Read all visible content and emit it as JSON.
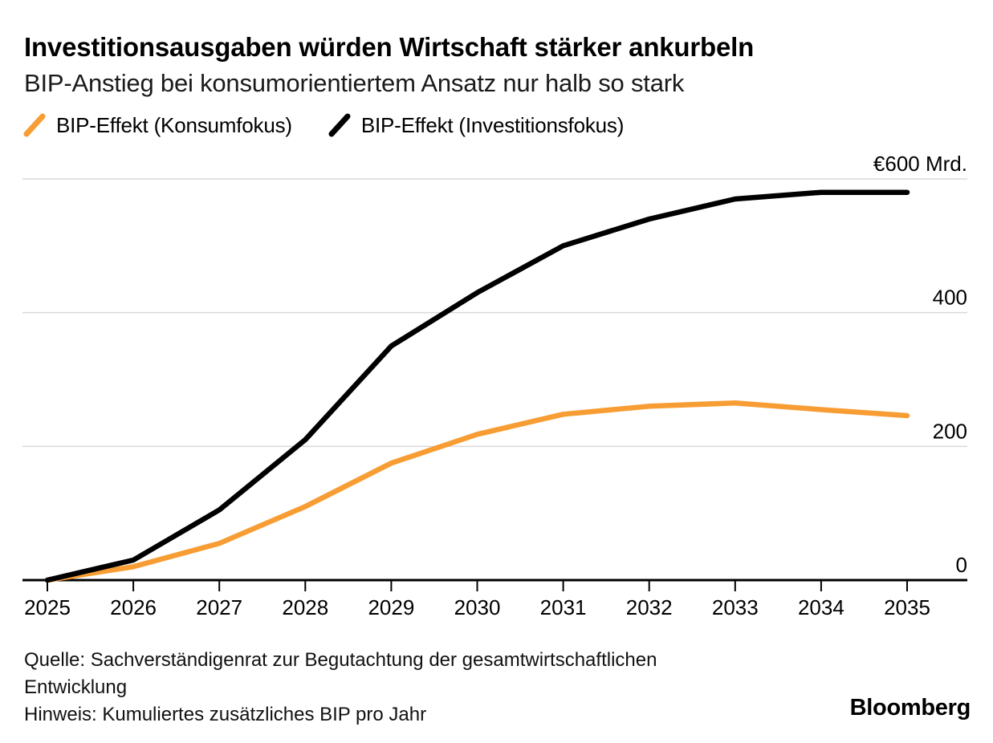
{
  "header": {
    "title": "Investitionsausgaben würden Wirtschaft stärker ankurbeln",
    "subtitle": "BIP-Anstieg bei konsumorientiertem Ansatz nur halb so stark"
  },
  "legend": [
    {
      "label": "BIP-Effekt (Konsumfokus)",
      "color": "#F79D33"
    },
    {
      "label": "BIP-Effekt (Investitionsfokus)",
      "color": "#000000"
    }
  ],
  "chart_data": {
    "type": "line",
    "categories": [
      "2025",
      "2026",
      "2027",
      "2028",
      "2029",
      "2030",
      "2031",
      "2032",
      "2033",
      "2034",
      "2035"
    ],
    "series": [
      {
        "name": "BIP-Effekt (Konsumfokus)",
        "color": "#F79D33",
        "values": [
          0,
          20,
          55,
          110,
          175,
          218,
          248,
          260,
          265,
          255,
          246
        ]
      },
      {
        "name": "BIP-Effekt (Investitionsfokus)",
        "color": "#000000",
        "values": [
          0,
          30,
          105,
          210,
          350,
          430,
          500,
          540,
          570,
          580,
          580
        ]
      }
    ],
    "unit": "€ Mrd.",
    "ylim": [
      0,
      600
    ],
    "yticks": [
      {
        "value": 0,
        "label": "0"
      },
      {
        "value": 200,
        "label": "200"
      },
      {
        "value": 400,
        "label": "400"
      },
      {
        "value": 600,
        "label": "€600 Mrd."
      }
    ],
    "grid": "horizontal",
    "legend_position": "top-left",
    "gridline_color": "#D9D9D9",
    "axis_color": "#000000"
  },
  "footer": {
    "source_line1": "Quelle: Sachverständigenrat zur Begutachtung der gesamtwirtschaftlichen",
    "source_line2": "Entwicklung",
    "note": "Hinweis: Kumuliertes zusätzliches BIP pro Jahr",
    "brand": "Bloomberg"
  }
}
